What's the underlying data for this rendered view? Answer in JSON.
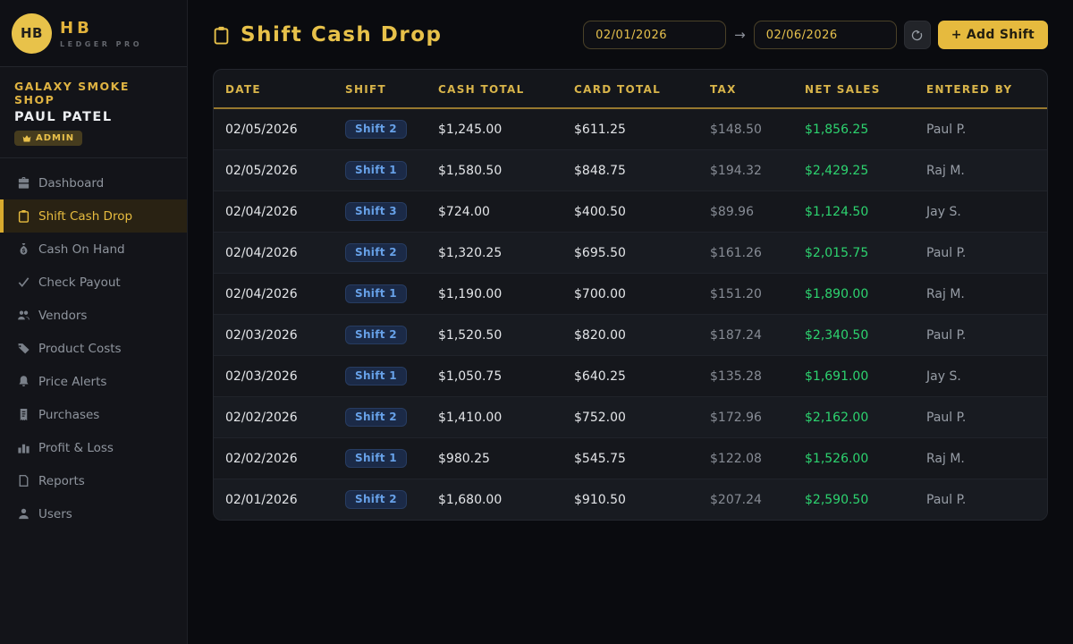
{
  "brand": {
    "initials": "HB",
    "name": "HB",
    "tagline": "LEDGER PRO"
  },
  "profile": {
    "shop": "GALAXY SMOKE SHOP",
    "user": "PAUL PATEL",
    "role_badge": "ADMIN"
  },
  "sidebar": {
    "items": [
      {
        "icon": "briefcase-icon",
        "label": "Dashboard",
        "active": false
      },
      {
        "icon": "clipboard-icon",
        "label": "Shift Cash Drop",
        "active": true
      },
      {
        "icon": "moneybag-icon",
        "label": "Cash On Hand",
        "active": false
      },
      {
        "icon": "check-pen-icon",
        "label": "Check Payout",
        "active": false
      },
      {
        "icon": "people-icon",
        "label": "Vendors",
        "active": false
      },
      {
        "icon": "tag-icon",
        "label": "Product Costs",
        "active": false
      },
      {
        "icon": "bell-icon",
        "label": "Price Alerts",
        "active": false
      },
      {
        "icon": "receipt-icon",
        "label": "Purchases",
        "active": false
      },
      {
        "icon": "bar-chart-icon",
        "label": "Profit & Loss",
        "active": false
      },
      {
        "icon": "document-icon",
        "label": "Reports",
        "active": false
      },
      {
        "icon": "user-icon",
        "label": "Users",
        "active": false
      }
    ]
  },
  "header": {
    "title": "Shift Cash Drop",
    "date_from": "02/01/2026",
    "date_to": "02/06/2026",
    "range_arrow": "→",
    "add_shift_label": "+ Add Shift"
  },
  "table": {
    "columns": [
      "DATE",
      "SHIFT",
      "CASH TOTAL",
      "CARD TOTAL",
      "TAX",
      "NET SALES",
      "ENTERED BY"
    ],
    "rows": [
      {
        "date": "02/05/2026",
        "shift": "Shift 2",
        "cash": "$1,245.00",
        "card": "$611.25",
        "tax": "$148.50",
        "net": "$1,856.25",
        "entered_by": "Paul P."
      },
      {
        "date": "02/05/2026",
        "shift": "Shift 1",
        "cash": "$1,580.50",
        "card": "$848.75",
        "tax": "$194.32",
        "net": "$2,429.25",
        "entered_by": "Raj M."
      },
      {
        "date": "02/04/2026",
        "shift": "Shift 3",
        "cash": "$724.00",
        "card": "$400.50",
        "tax": "$89.96",
        "net": "$1,124.50",
        "entered_by": "Jay S."
      },
      {
        "date": "02/04/2026",
        "shift": "Shift 2",
        "cash": "$1,320.25",
        "card": "$695.50",
        "tax": "$161.26",
        "net": "$2,015.75",
        "entered_by": "Paul P."
      },
      {
        "date": "02/04/2026",
        "shift": "Shift 1",
        "cash": "$1,190.00",
        "card": "$700.00",
        "tax": "$151.20",
        "net": "$1,890.00",
        "entered_by": "Raj M."
      },
      {
        "date": "02/03/2026",
        "shift": "Shift 2",
        "cash": "$1,520.50",
        "card": "$820.00",
        "tax": "$187.24",
        "net": "$2,340.50",
        "entered_by": "Paul P."
      },
      {
        "date": "02/03/2026",
        "shift": "Shift 1",
        "cash": "$1,050.75",
        "card": "$640.25",
        "tax": "$135.28",
        "net": "$1,691.00",
        "entered_by": "Jay S."
      },
      {
        "date": "02/02/2026",
        "shift": "Shift 2",
        "cash": "$1,410.00",
        "card": "$752.00",
        "tax": "$172.96",
        "net": "$2,162.00",
        "entered_by": "Paul P."
      },
      {
        "date": "02/02/2026",
        "shift": "Shift 1",
        "cash": "$980.25",
        "card": "$545.75",
        "tax": "$122.08",
        "net": "$1,526.00",
        "entered_by": "Raj M."
      },
      {
        "date": "02/01/2026",
        "shift": "Shift 2",
        "cash": "$1,680.00",
        "card": "$910.50",
        "tax": "$207.24",
        "net": "$2,590.50",
        "entered_by": "Paul P."
      }
    ]
  },
  "colors": {
    "accent_gold": "#e6ba3e",
    "net_green": "#2dd36f",
    "badge_blue_text": "#67a1e8",
    "badge_blue_bg": "#1b2a47",
    "sidebar_bg": "#131419",
    "main_bg": "#0a0b0f"
  }
}
